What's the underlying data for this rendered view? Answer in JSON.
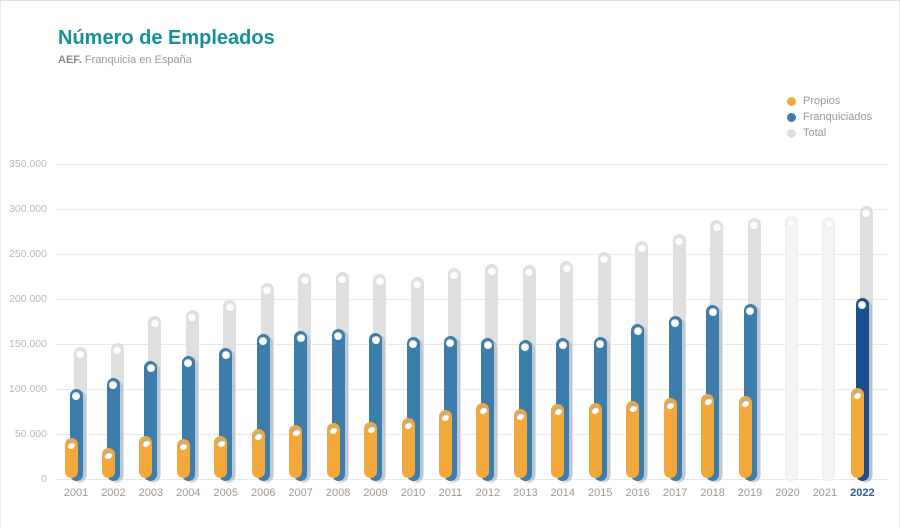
{
  "header": {
    "title": "Número de Empleados",
    "subtitle_prefix": "AEF.",
    "subtitle_rest": "Franquicia en España"
  },
  "legend": {
    "items": [
      {
        "label": "Propios",
        "color": "#f3a83c"
      },
      {
        "label": "Franquiciados",
        "color": "#3d7dab"
      },
      {
        "label": "Total",
        "color": "#dfdfdf"
      }
    ]
  },
  "chart_data": {
    "type": "bar",
    "title": "Número de Empleados",
    "subtitle": "AEF. Franquicia en España",
    "categories": [
      "2001",
      "2002",
      "2003",
      "2004",
      "2005",
      "2006",
      "2007",
      "2008",
      "2009",
      "2010",
      "2011",
      "2012",
      "2013",
      "2014",
      "2015",
      "2016",
      "2017",
      "2018",
      "2019",
      "2020",
      "2021",
      "2022"
    ],
    "series": [
      {
        "name": "Propios",
        "color": "#f3a83c",
        "values": [
          46000,
          34000,
          48000,
          45000,
          48000,
          56000,
          60000,
          62000,
          63000,
          68000,
          77000,
          84000,
          78000,
          83000,
          85000,
          87000,
          90000,
          94000,
          92000,
          null,
          null,
          101000
        ]
      },
      {
        "name": "Franquiciados",
        "color": "#3d7dab",
        "values": [
          100000,
          112000,
          131000,
          137000,
          146000,
          161000,
          164000,
          167000,
          162000,
          158000,
          159000,
          157000,
          154000,
          157000,
          158000,
          172000,
          181000,
          193000,
          194000,
          null,
          null,
          201000
        ]
      },
      {
        "name": "Total",
        "color": "#dfdfdf",
        "values": [
          147000,
          151000,
          181000,
          188000,
          199000,
          218000,
          229000,
          230000,
          228000,
          225000,
          234000,
          239000,
          238000,
          242000,
          252000,
          265000,
          272000,
          288000,
          290000,
          292000,
          291000,
          303000
        ]
      }
    ],
    "ylabel": "",
    "xlabel": "",
    "ylim": [
      0,
      350000
    ],
    "y_ticks": [
      "0",
      "50.000",
      "100.000",
      "150.000",
      "200.000",
      "250.000",
      "300.000",
      "350.000"
    ],
    "grid": true,
    "legend_position": "top-right",
    "highlight_year": "2022",
    "highlight_color": "#1d4e8f",
    "ghost_years": [
      "2020",
      "2021"
    ],
    "highlight_label_color": "#2e5e9d"
  }
}
